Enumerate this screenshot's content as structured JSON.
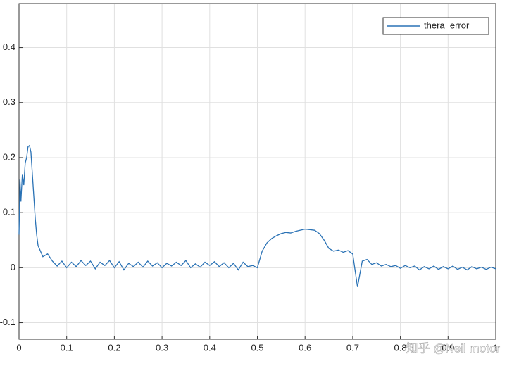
{
  "chart_data": {
    "type": "line",
    "x": [
      0,
      0.002,
      0.004,
      0.007,
      0.01,
      0.013,
      0.016,
      0.019,
      0.022,
      0.025,
      0.028,
      0.031,
      0.034,
      0.037,
      0.04,
      0.05,
      0.06,
      0.07,
      0.08,
      0.09,
      0.1,
      0.11,
      0.12,
      0.13,
      0.14,
      0.15,
      0.16,
      0.17,
      0.18,
      0.19,
      0.2,
      0.21,
      0.22,
      0.23,
      0.24,
      0.25,
      0.26,
      0.27,
      0.28,
      0.29,
      0.3,
      0.31,
      0.32,
      0.33,
      0.34,
      0.35,
      0.36,
      0.37,
      0.38,
      0.39,
      0.4,
      0.41,
      0.42,
      0.43,
      0.44,
      0.45,
      0.46,
      0.47,
      0.48,
      0.49,
      0.5,
      0.51,
      0.52,
      0.53,
      0.54,
      0.55,
      0.56,
      0.57,
      0.58,
      0.59,
      0.6,
      0.61,
      0.62,
      0.63,
      0.64,
      0.65,
      0.66,
      0.67,
      0.68,
      0.69,
      0.7,
      0.71,
      0.72,
      0.73,
      0.74,
      0.75,
      0.76,
      0.77,
      0.78,
      0.79,
      0.8,
      0.81,
      0.82,
      0.83,
      0.84,
      0.85,
      0.86,
      0.87,
      0.88,
      0.89,
      0.9,
      0.91,
      0.92,
      0.93,
      0.94,
      0.95,
      0.96,
      0.97,
      0.98,
      0.99,
      1
    ],
    "series": [
      {
        "name": "thera_error",
        "color": "#2a72b5",
        "values": [
          0.06,
          0.16,
          0.12,
          0.17,
          0.15,
          0.19,
          0.2,
          0.22,
          0.222,
          0.21,
          0.17,
          0.13,
          0.09,
          0.06,
          0.04,
          0.02,
          0.025,
          0.012,
          0.003,
          0.012,
          0,
          0.01,
          0.002,
          0.013,
          0.004,
          0.012,
          -0.002,
          0.01,
          0.004,
          0.013,
          0,
          0.011,
          -0.004,
          0.008,
          0.002,
          0.01,
          0.001,
          0.012,
          0.003,
          0.009,
          0,
          0.008,
          0.003,
          0.01,
          0.004,
          0.013,
          0,
          0.007,
          0.001,
          0.01,
          0.004,
          0.011,
          0.002,
          0.009,
          0,
          0.008,
          -0.004,
          0.01,
          0.002,
          0.004,
          0,
          0.03,
          0.045,
          0.053,
          0.058,
          0.062,
          0.064,
          0.063,
          0.066,
          0.068,
          0.07,
          0.069,
          0.068,
          0.062,
          0.05,
          0.035,
          0.03,
          0.032,
          0.028,
          0.031,
          0.025,
          -0.035,
          0.012,
          0.015,
          0.006,
          0.009,
          0.003,
          0.006,
          0.002,
          0.004,
          -0.001,
          0.004,
          0,
          0.003,
          -0.004,
          0.002,
          -0.002,
          0.003,
          -0.003,
          0.002,
          -0.002,
          0.003,
          -0.003,
          0.001,
          -0.004,
          0.002,
          -0.002,
          0.001,
          -0.003,
          0.001,
          -0.002
        ]
      }
    ],
    "xlim": [
      0,
      1
    ],
    "xticks": [
      0,
      0.1,
      0.2,
      0.3,
      0.4,
      0.5,
      0.6,
      0.7,
      0.8,
      0.9,
      1
    ],
    "ylim": [
      -0.13,
      0.48
    ],
    "yticks": [
      -0.1,
      0,
      0.1,
      0.2,
      0.3,
      0.4
    ],
    "grid": true,
    "legend": "upper-right",
    "annotations": [
      "知乎 @Neil motor"
    ]
  }
}
